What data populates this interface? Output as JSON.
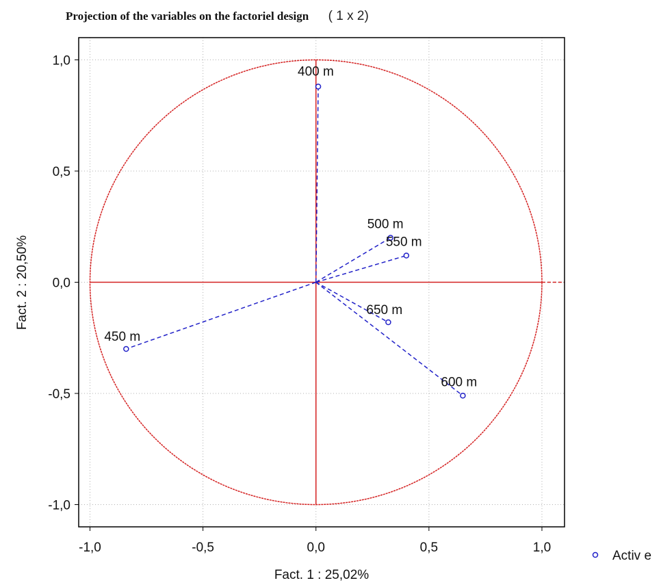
{
  "chart_data": {
    "type": "scatter",
    "title": "Projection of the variables on the factoriel design",
    "title_suffix": "( 1 x  2)",
    "xlabel": "Fact. 1  : 25,02%",
    "ylabel": "Fact. 2  : 20,50%",
    "xlim": [
      -1.05,
      1.1
    ],
    "ylim": [
      -1.1,
      1.1
    ],
    "x_ticks": [
      -1.0,
      -0.5,
      0.0,
      0.5,
      1.0
    ],
    "x_tick_labels": [
      "-1,0",
      "-0,5",
      "0,0",
      "0,5",
      "1,0"
    ],
    "y_ticks": [
      1.0,
      0.5,
      0.0,
      -0.5,
      -1.0
    ],
    "y_tick_labels": [
      "1,0",
      "0,5",
      "0,0",
      "-0,5",
      "-1,0"
    ],
    "grid": true,
    "unit_circle": true,
    "series": [
      {
        "name": "Active",
        "points": [
          {
            "label": "400 m",
            "x": 0.01,
            "y": 0.88
          },
          {
            "label": "500 m",
            "x": 0.33,
            "y": 0.2
          },
          {
            "label": "550 m",
            "x": 0.4,
            "y": 0.12
          },
          {
            "label": "450 m",
            "x": -0.84,
            "y": -0.3
          },
          {
            "label": "650 m",
            "x": 0.32,
            "y": -0.18
          },
          {
            "label": "600 m",
            "x": 0.65,
            "y": -0.51
          }
        ]
      }
    ],
    "legend": {
      "position": "bottom-right",
      "label": "Activ e"
    },
    "colors": {
      "circle": "#d42020",
      "points": "#2020c8",
      "grid": "#b0b0b0"
    }
  }
}
